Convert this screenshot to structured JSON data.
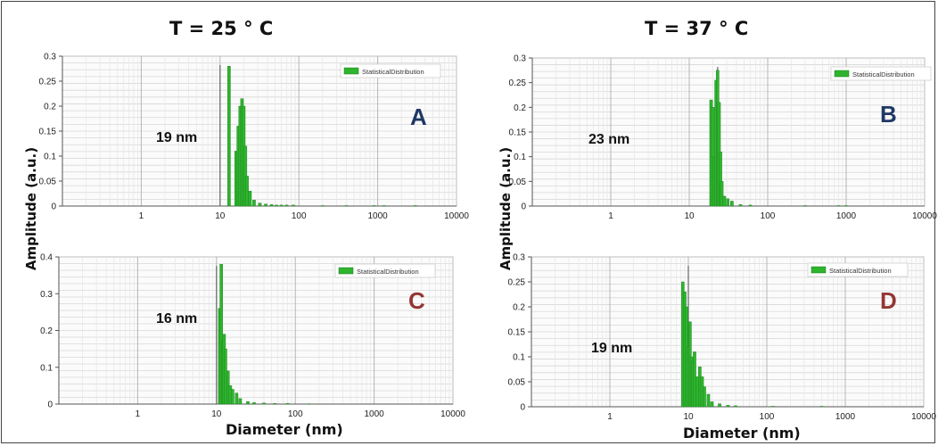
{
  "titles": {
    "left": "T = 25 ° C",
    "right": "T = 37 ° C"
  },
  "y_axis_label": "Amplitude (a.u.)",
  "x_axis_label": "Diameter (nm)",
  "colors": {
    "bar": "#2db52d",
    "bar_edge": "#1f7a1f",
    "grid": "#d8d8d8",
    "marker_line": "#707070"
  },
  "chart_data": [
    {
      "type": "bar",
      "panel": "A",
      "letter": "A",
      "letter_color": "#1f3864",
      "size_label": "19 nm",
      "legend": "StatisticalDistribution",
      "x_scale": "log",
      "xlim": [
        0.1,
        10000
      ],
      "ylim": [
        0,
        0.3
      ],
      "x_ticks": [
        "1",
        "10",
        "100",
        "1000",
        "10000"
      ],
      "y_ticks": [
        "0",
        "0.05",
        "0.1",
        "0.15",
        "0.2",
        "0.25",
        "0.3"
      ],
      "marker_x": 10,
      "x": [
        13,
        16,
        17,
        18,
        19,
        20,
        21,
        22,
        24,
        27,
        32,
        38,
        45,
        52,
        60,
        70,
        85,
        200,
        400,
        900,
        1200,
        3000
      ],
      "y": [
        0.28,
        0.11,
        0.16,
        0.2,
        0.215,
        0.2,
        0.12,
        0.06,
        0.03,
        0.012,
        0.006,
        0.004,
        0.003,
        0.002,
        0.002,
        0.002,
        0.002,
        0.001,
        0.001,
        0.001,
        0.001,
        0.001
      ]
    },
    {
      "type": "bar",
      "panel": "B",
      "letter": "B",
      "letter_color": "#1f3864",
      "size_label": "23 nm",
      "legend": "StatisticalDistribution",
      "x_scale": "log",
      "xlim": [
        0.1,
        10000
      ],
      "ylim": [
        0,
        0.3
      ],
      "x_ticks": [
        "1",
        "10",
        "100",
        "1000",
        "10000"
      ],
      "y_ticks": [
        "0",
        "0.05",
        "0.1",
        "0.15",
        "0.2",
        "0.25",
        "0.3"
      ],
      "marker_x": 23,
      "x": [
        19,
        20,
        21,
        22,
        23,
        24,
        25,
        26,
        28,
        31,
        35,
        45,
        60,
        300,
        800,
        1000
      ],
      "y": [
        0.215,
        0.2,
        0.1,
        0.255,
        0.275,
        0.21,
        0.11,
        0.05,
        0.02,
        0.015,
        0.01,
        0.003,
        0.002,
        0.001,
        0.001,
        0.001
      ]
    },
    {
      "type": "bar",
      "panel": "C",
      "letter": "C",
      "letter_color": "#943634",
      "size_label": "16 nm",
      "legend": "StatisticalDistribution",
      "x_scale": "log",
      "xlim": [
        0.1,
        10000
      ],
      "ylim": [
        0,
        0.4
      ],
      "x_ticks": [
        "1",
        "10",
        "100",
        "1000",
        "10000"
      ],
      "y_ticks": [
        "0",
        "0.1",
        "0.2",
        "0.3",
        "0.4"
      ],
      "marker_x": 10,
      "x": [
        11,
        11.5,
        12,
        12.5,
        13,
        14,
        15,
        16,
        18,
        20,
        25,
        30,
        40,
        55,
        80,
        150
      ],
      "y": [
        0.26,
        0.38,
        0.17,
        0.19,
        0.15,
        0.09,
        0.05,
        0.04,
        0.03,
        0.015,
        0.007,
        0.004,
        0.003,
        0.002,
        0.002,
        0.001
      ]
    },
    {
      "type": "bar",
      "panel": "D",
      "letter": "D",
      "letter_color": "#943634",
      "size_label": "19 nm",
      "legend": "StatisticalDistribution",
      "x_scale": "log",
      "xlim": [
        0.1,
        10000
      ],
      "ylim": [
        0,
        0.3
      ],
      "x_ticks": [
        "1",
        "10",
        "100",
        "1000",
        "10000"
      ],
      "y_ticks": [
        "0",
        "0.05",
        "0.1",
        "0.15",
        "0.2",
        "0.25",
        "0.3"
      ],
      "marker_x": 10,
      "x": [
        8.5,
        9,
        9.5,
        10,
        10.5,
        11,
        11.5,
        12,
        13,
        14,
        15,
        16,
        18,
        20,
        25,
        32,
        40,
        120,
        500
      ],
      "y": [
        0.25,
        0.23,
        0.2,
        0.12,
        0.17,
        0.1,
        0.09,
        0.11,
        0.06,
        0.08,
        0.06,
        0.04,
        0.025,
        0.01,
        0.006,
        0.003,
        0.002,
        0.001,
        0.001
      ]
    }
  ]
}
